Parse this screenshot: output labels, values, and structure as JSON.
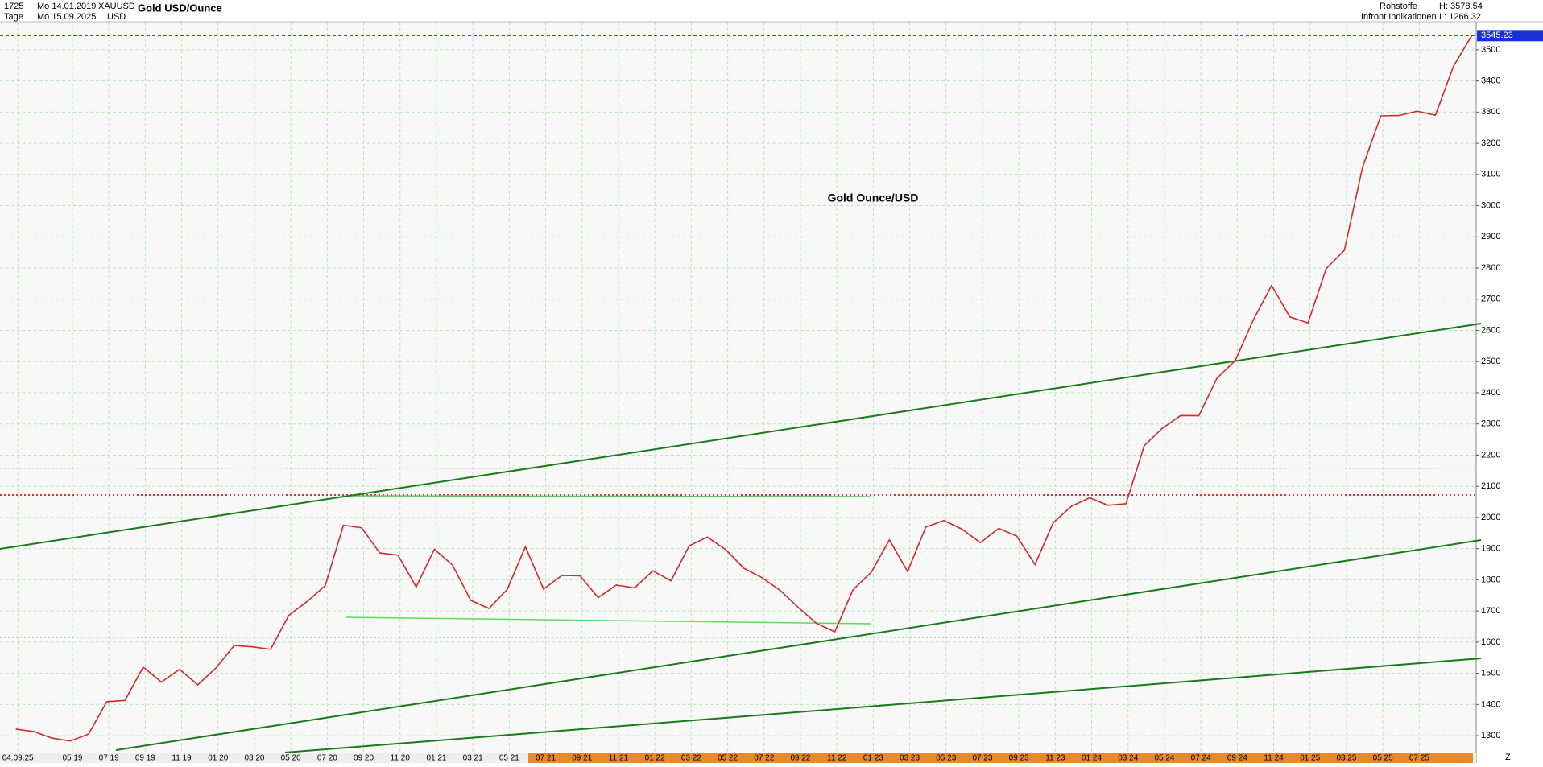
{
  "header": {
    "count": "1725",
    "start_date": "Mo 14.01.2019",
    "symbol": "XAUUSD",
    "title": "Gold USD/Ounce",
    "period": "Tage",
    "end_date": "Mo 15.09.2025",
    "currency": "USD",
    "group": "Rohstoffe",
    "high": "H: 3578.54",
    "source": "Infront Indikationen",
    "low": "L: 1266.32",
    "axis_end": "Z"
  },
  "chart_data": {
    "type": "line",
    "annotation": "Gold Ounce/USD",
    "categories": [
      null,
      "04.09.25",
      null,
      null,
      "05 19",
      null,
      "07 19",
      null,
      "09 19",
      null,
      "11 19",
      null,
      "01 20",
      null,
      "03 20",
      null,
      "05 20",
      null,
      "07 20",
      null,
      "09 20",
      null,
      "11 20",
      null,
      "01 21",
      null,
      "03 21",
      null,
      "05 21",
      null,
      "07 21",
      null,
      "09 21",
      null,
      "11 21",
      null,
      "01 22",
      null,
      "03 22",
      null,
      "05 22",
      null,
      "07 22",
      null,
      "09 22",
      null,
      "11 22",
      null,
      "01 23",
      null,
      "03 23",
      null,
      "05 23",
      null,
      "07 23",
      null,
      "09 23",
      null,
      "11 23",
      null,
      "01 24",
      null,
      "03 24",
      null,
      "05 24",
      null,
      "07 24",
      null,
      "09 24",
      null,
      "11 24",
      null,
      "01 25",
      null,
      "03 25",
      null,
      "05 25",
      null,
      "07 25",
      null,
      null
    ],
    "series": [
      {
        "color": "#d42a2a",
        "values": [
          1321,
          1313,
          1292,
          1283,
          1305,
          1409,
          1413,
          1520,
          1472,
          1513,
          1463,
          1517,
          1589,
          1585,
          1577,
          1686,
          1730,
          1781,
          1975,
          1967,
          1886,
          1879,
          1777,
          1898,
          1847,
          1734,
          1708,
          1769,
          1906,
          1770,
          1814,
          1813,
          1743,
          1783,
          1774,
          1829,
          1797,
          1909,
          1937,
          1897,
          1837,
          1807,
          1766,
          1711,
          1660,
          1633,
          1768,
          1824,
          1928,
          1827,
          1969,
          1990,
          1962,
          1919,
          1965,
          1940,
          1849,
          1983,
          2036,
          2063,
          2039,
          2044,
          2230,
          2286,
          2327,
          2326,
          2447,
          2503,
          2634,
          2744,
          2643,
          2624,
          2798,
          2857,
          3124,
          3288,
          3289,
          3303,
          3290,
          3448,
          3545.23
        ]
      }
    ],
    "ylim": [
      1246,
      3590
    ],
    "yticks": [
      1300,
      1400,
      1500,
      1600,
      1700,
      1800,
      1900,
      2000,
      2100,
      2200,
      2300,
      2400,
      2500,
      2600,
      2700,
      2800,
      2900,
      3000,
      3100,
      3200,
      3300,
      3400,
      3500
    ],
    "grid": true
  }
}
